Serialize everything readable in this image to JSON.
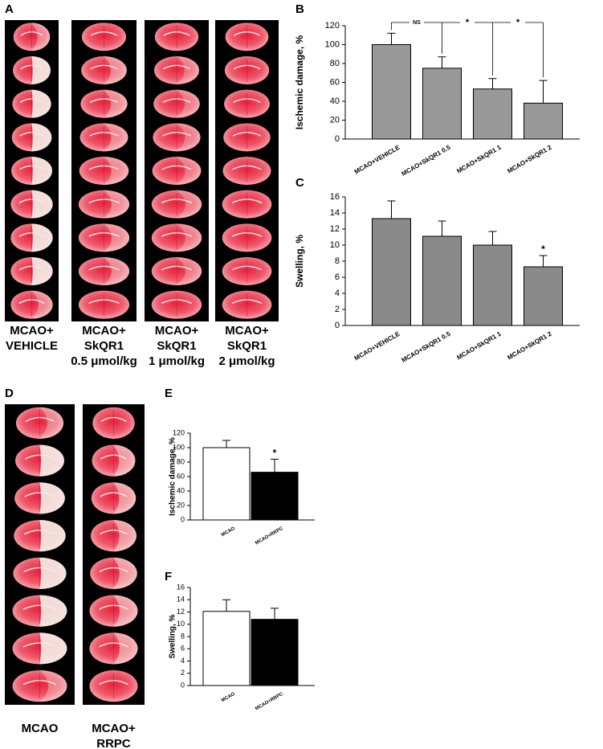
{
  "panels": [
    {
      "panel": "A",
      "captions": [
        [
          "MCAO+",
          "VEHICLE"
        ],
        [
          "MCAO+",
          "SkQR1",
          "0.5 μmol/kg"
        ],
        [
          "MCAO+",
          "SkQR1",
          "1 μmol/kg"
        ],
        [
          "MCAO+",
          "SkQR1",
          "2 μmol/kg"
        ]
      ]
    },
    {
      "panel": "D",
      "captions": [
        [
          "MCAO"
        ],
        [
          "MCAO+",
          "RRPC"
        ]
      ]
    }
  ],
  "chart_data": [
    {
      "type": "bar",
      "panel": "B",
      "y_label": "Ischemic damage, %",
      "categories": [
        "MCAO+VEHICLE",
        "MCAO+SkQR1 0.5",
        "MCAO+SkQR1 1",
        "MCAO+SkQR1 2"
      ],
      "values": [
        100,
        75,
        53,
        38
      ],
      "errors": [
        12,
        12,
        11,
        24
      ],
      "color": "#999999",
      "ylim": [
        0,
        120
      ],
      "yticks": [
        0,
        20,
        40,
        60,
        80,
        100,
        120
      ],
      "annotations": [
        "NS",
        "*",
        "*"
      ]
    },
    {
      "type": "bar",
      "panel": "C",
      "y_label": "Swelling, %",
      "categories": [
        "MCAO+VEHICLE",
        "MCAO+SkQR1 0.5",
        "MCAO+SkQR1 1",
        "MCAO+SkQR1 2"
      ],
      "values": [
        13.3,
        11.1,
        10.0,
        7.3
      ],
      "errors": [
        2.2,
        1.9,
        1.7,
        1.4
      ],
      "color": "#8a8a8a",
      "ylim": [
        0,
        16
      ],
      "yticks": [
        0,
        2,
        4,
        6,
        8,
        10,
        12,
        14,
        16
      ],
      "annotations": [
        "*"
      ]
    },
    {
      "type": "bar",
      "panel": "E",
      "y_label": "Ischemic damage, %",
      "categories": [
        "MCAO",
        "MCAO+RRPC"
      ],
      "values": [
        100,
        66
      ],
      "errors": [
        10,
        18
      ],
      "colors": [
        "#ffffff",
        "#000000"
      ],
      "ylim": [
        0,
        120
      ],
      "yticks": [
        0,
        20,
        40,
        60,
        80,
        100,
        120
      ],
      "annotations": [
        "*"
      ]
    },
    {
      "type": "bar",
      "panel": "F",
      "y_label": "Swelling, %",
      "categories": [
        "MCAO",
        "MCAO+RRPC"
      ],
      "values": [
        12.1,
        10.8
      ],
      "errors": [
        1.9,
        1.8
      ],
      "colors": [
        "#ffffff",
        "#000000"
      ],
      "ylim": [
        0,
        16
      ],
      "yticks": [
        0,
        2,
        4,
        6,
        8,
        10,
        12,
        14,
        16
      ]
    }
  ]
}
